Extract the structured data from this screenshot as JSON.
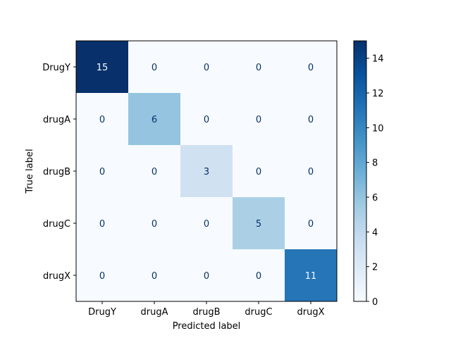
{
  "chart_data": {
    "type": "heatmap",
    "title": "",
    "xlabel": "Predicted label",
    "ylabel": "True label",
    "x_categories": [
      "DrugY",
      "drugA",
      "drugB",
      "drugC",
      "drugX"
    ],
    "y_categories": [
      "DrugY",
      "drugA",
      "drugB",
      "drugC",
      "drugX"
    ],
    "values": [
      [
        15,
        0,
        0,
        0,
        0
      ],
      [
        0,
        6,
        0,
        0,
        0
      ],
      [
        0,
        0,
        3,
        0,
        0
      ],
      [
        0,
        0,
        0,
        5,
        0
      ],
      [
        0,
        0,
        0,
        0,
        11
      ]
    ],
    "colormap": "Blues",
    "colorbar": {
      "range": [
        0,
        15
      ],
      "ticks": [
        0,
        2,
        4,
        6,
        8,
        10,
        12,
        14
      ]
    },
    "grid": false
  }
}
